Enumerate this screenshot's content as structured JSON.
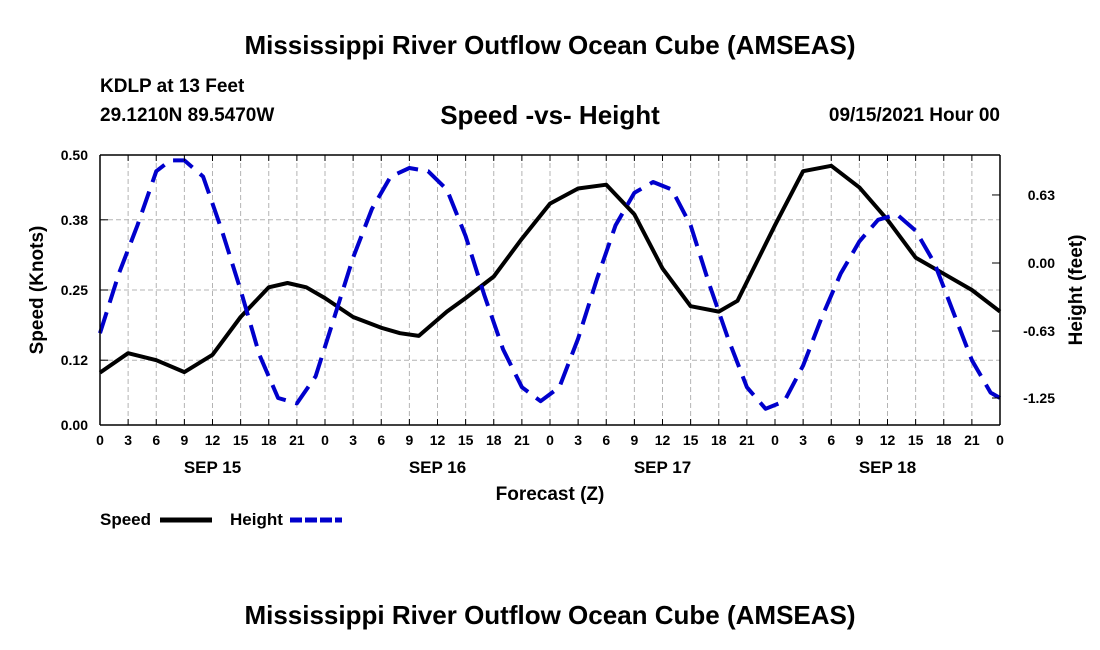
{
  "header": {
    "title": "Mississippi River Outflow Ocean Cube (AMSEAS)",
    "station": "KDLP at 13 Feet",
    "coords": "29.1210N  89.5470W",
    "subtitle": "Speed -vs- Height",
    "datetime": "09/15/2021 Hour 00"
  },
  "footer": {
    "title": "Mississippi River Outflow Ocean Cube (AMSEAS)"
  },
  "legend": {
    "speed_label": "Speed",
    "height_label": "Height"
  },
  "colors": {
    "speed": "#000000",
    "height": "#0000cc",
    "grid": "#b4b4b4"
  },
  "chart_data": {
    "type": "line",
    "title": "Speed -vs- Height",
    "xlabel": "Forecast (Z)",
    "ylabel": "Speed (Knots)",
    "y2label": "Height (feet)",
    "xlim": [
      0,
      96
    ],
    "ylim": [
      0,
      0.5
    ],
    "y2lim": [
      -1.5,
      1.0
    ],
    "x_tick_labels": [
      "0",
      "3",
      "6",
      "9",
      "12",
      "15",
      "18",
      "21",
      "0",
      "3",
      "6",
      "9",
      "12",
      "15",
      "18",
      "21",
      "0",
      "3",
      "6",
      "9",
      "12",
      "15",
      "18",
      "21",
      "0",
      "3",
      "6",
      "9",
      "12",
      "15",
      "18",
      "21",
      "0"
    ],
    "day_labels": [
      {
        "label": "SEP 15",
        "at": 12
      },
      {
        "label": "SEP 16",
        "at": 36
      },
      {
        "label": "SEP 17",
        "at": 60
      },
      {
        "label": "SEP 18",
        "at": 84
      }
    ],
    "y_ticks": [
      0.0,
      0.12,
      0.25,
      0.38,
      0.5
    ],
    "y_tick_labels": [
      "0.00",
      "0.12",
      "0.25",
      "0.38",
      "0.50"
    ],
    "y2_ticks": [
      0.63,
      0.0,
      -0.63,
      -1.25
    ],
    "y2_tick_labels": [
      "0.63",
      "0.00",
      "-0.63",
      "-1.25"
    ],
    "legend": "bottom-left",
    "grid": true,
    "series": [
      {
        "name": "Speed",
        "axis": "left",
        "style": "solid",
        "x": [
          0,
          3,
          6,
          9,
          12,
          15,
          18,
          20,
          22,
          24,
          27,
          30,
          32,
          34,
          37,
          39,
          42,
          45,
          48,
          51,
          54,
          57,
          60,
          63,
          66,
          68,
          69,
          72,
          75,
          78,
          81,
          84,
          87,
          90,
          93,
          96
        ],
        "values": [
          0.097,
          0.133,
          0.12,
          0.098,
          0.13,
          0.2,
          0.255,
          0.263,
          0.255,
          0.235,
          0.2,
          0.18,
          0.17,
          0.165,
          0.21,
          0.235,
          0.275,
          0.345,
          0.41,
          0.438,
          0.445,
          0.39,
          0.29,
          0.22,
          0.21,
          0.23,
          0.265,
          0.37,
          0.47,
          0.48,
          0.44,
          0.38,
          0.31,
          0.28,
          0.25,
          0.21
        ]
      },
      {
        "name": "Height",
        "axis": "right",
        "style": "dashed",
        "x": [
          0,
          2,
          4,
          6,
          7.5,
          9,
          11,
          13,
          15,
          17,
          19,
          21,
          23,
          25,
          27,
          29,
          31,
          33,
          35,
          37,
          39,
          41,
          43,
          45,
          47,
          49,
          51,
          53,
          55,
          57,
          59,
          61,
          63,
          65,
          67,
          69,
          71,
          73,
          75,
          77,
          79,
          81,
          83,
          85,
          87,
          89,
          91,
          93,
          95,
          96
        ],
        "values": [
          -0.65,
          -0.1,
          0.35,
          0.85,
          0.95,
          0.95,
          0.8,
          0.3,
          -0.25,
          -0.85,
          -1.25,
          -1.3,
          -1.05,
          -0.5,
          0.05,
          0.5,
          0.8,
          0.88,
          0.85,
          0.68,
          0.25,
          -0.3,
          -0.8,
          -1.15,
          -1.28,
          -1.15,
          -0.7,
          -0.15,
          0.35,
          0.65,
          0.75,
          0.68,
          0.35,
          -0.2,
          -0.7,
          -1.15,
          -1.35,
          -1.28,
          -0.95,
          -0.5,
          -0.1,
          0.2,
          0.4,
          0.45,
          0.3,
          0.0,
          -0.45,
          -0.9,
          -1.2,
          -1.25
        ]
      }
    ]
  }
}
